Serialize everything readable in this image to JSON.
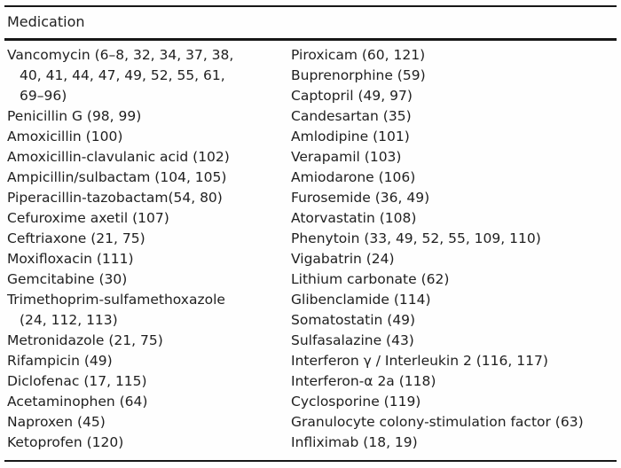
{
  "page": {
    "background": "#fefefe",
    "text_color": "#1f1f1f",
    "rule_color": "#171717"
  },
  "table": {
    "header": "Medication",
    "columns": [
      {
        "lines": [
          {
            "text": "Vancomycin (6–8, 32, 34, 37, 38,",
            "indent": false
          },
          {
            "text": "40, 41, 44, 47, 49, 52, 55, 61,",
            "indent": true
          },
          {
            "text": "69–96)",
            "indent": true
          },
          {
            "text": "Penicillin G (98, 99)",
            "indent": false
          },
          {
            "text": "Amoxicillin (100)",
            "indent": false
          },
          {
            "text": "Amoxicillin-clavulanic acid (102)",
            "indent": false
          },
          {
            "text": "Ampicillin/sulbactam (104, 105)",
            "indent": false
          },
          {
            "text": "Piperacillin-tazobactam(54, 80)",
            "indent": false
          },
          {
            "text": "Cefuroxime axetil (107)",
            "indent": false
          },
          {
            "text": "Ceftriaxone (21, 75)",
            "indent": false
          },
          {
            "text": "Moxifloxacin (111)",
            "indent": false
          },
          {
            "text": "Gemcitabine (30)",
            "indent": false
          },
          {
            "text": "Trimethoprim-sulfamethoxazole",
            "indent": false
          },
          {
            "text": "(24, 112, 113)",
            "indent": true
          },
          {
            "text": "Metronidazole (21, 75)",
            "indent": false
          },
          {
            "text": "Rifampicin (49)",
            "indent": false
          },
          {
            "text": "Diclofenac (17, 115)",
            "indent": false
          },
          {
            "text": "Acetaminophen (64)",
            "indent": false
          },
          {
            "text": "Naproxen (45)",
            "indent": false
          },
          {
            "text": "Ketoprofen (120)",
            "indent": false
          }
        ]
      },
      {
        "lines": [
          {
            "text": "Piroxicam (60, 121)",
            "indent": false
          },
          {
            "text": "Buprenorphine (59)",
            "indent": false
          },
          {
            "text": "Captopril (49, 97)",
            "indent": false
          },
          {
            "text": "Candesartan (35)",
            "indent": false
          },
          {
            "text": "Amlodipine (101)",
            "indent": false
          },
          {
            "text": "Verapamil (103)",
            "indent": false
          },
          {
            "text": "Amiodarone (106)",
            "indent": false
          },
          {
            "text": "Furosemide (36, 49)",
            "indent": false
          },
          {
            "text": "Atorvastatin (108)",
            "indent": false
          },
          {
            "text": "Phenytoin (33, 49, 52, 55, 109, 110)",
            "indent": false
          },
          {
            "text": "Vigabatrin (24)",
            "indent": false
          },
          {
            "text": "Lithium carbonate (62)",
            "indent": false
          },
          {
            "text": "Glibenclamide (114)",
            "indent": false
          },
          {
            "text": "Somatostatin (49)",
            "indent": false
          },
          {
            "text": "Sulfasalazine (43)",
            "indent": false
          },
          {
            "text": "Interferon γ / Interleukin 2 (116, 117)",
            "indent": false
          },
          {
            "text": "Interferon-α 2a (118)",
            "indent": false
          },
          {
            "text": "Cyclosporine (119)",
            "indent": false
          },
          {
            "text": "Granulocyte colony-stimulation factor (63)",
            "indent": false
          },
          {
            "text": "Infliximab (18, 19)",
            "indent": false
          }
        ]
      }
    ]
  }
}
